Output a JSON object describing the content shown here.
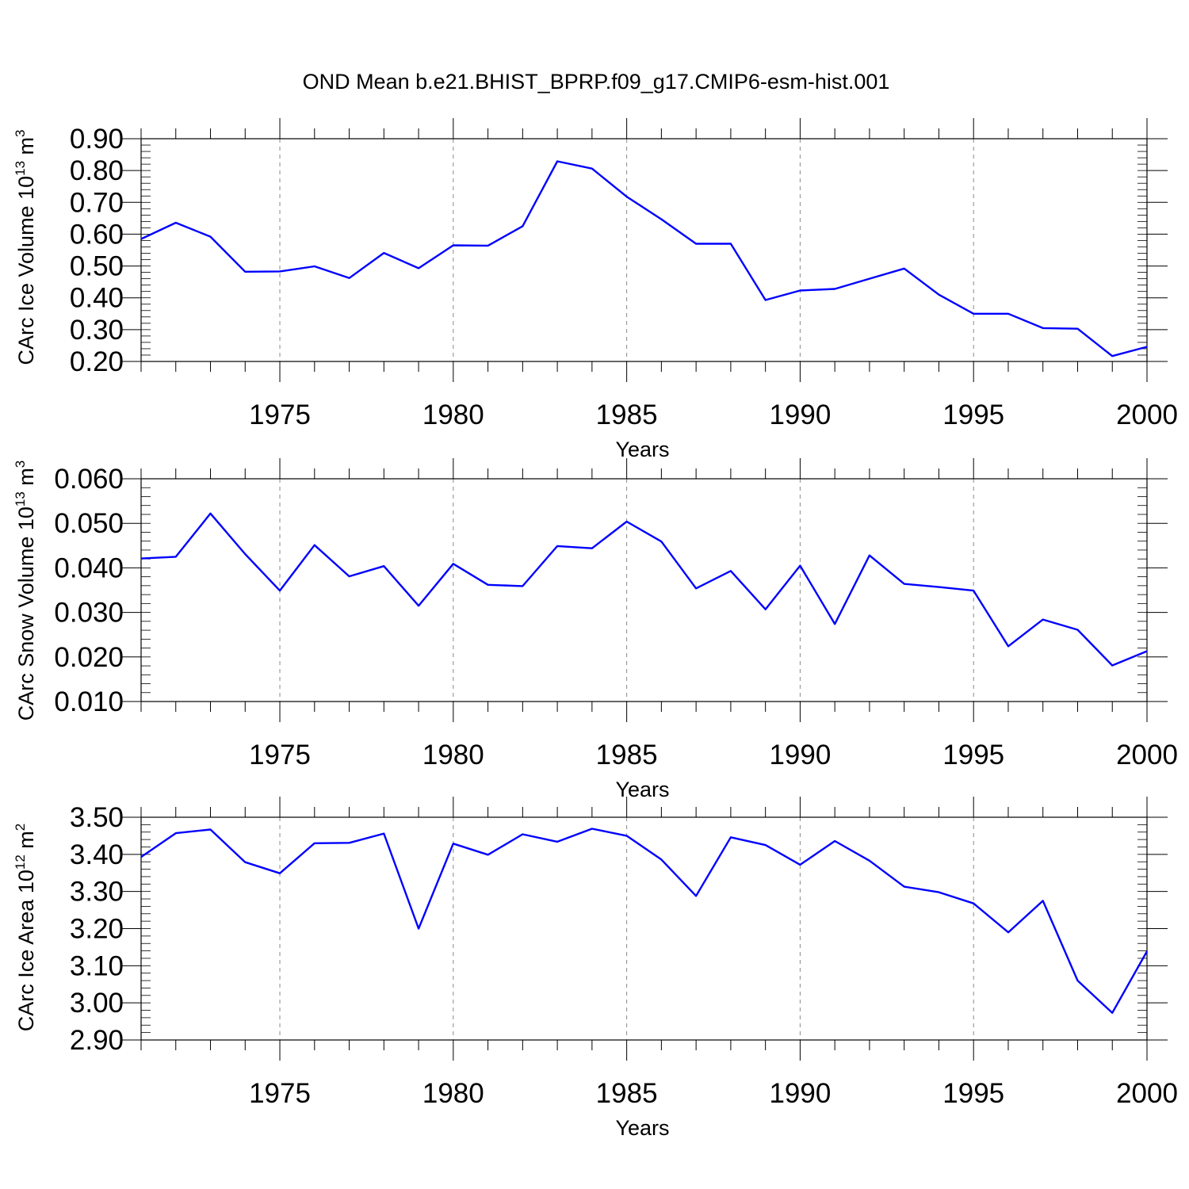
{
  "title": "OND Mean b.e21.BHIST_BPRP.f09_g17.CMIP6-esm-hist.001",
  "chart_data": [
    {
      "type": "line",
      "title": "OND Mean b.e21.BHIST_BPRP.f09_g17.CMIP6-esm-hist.001",
      "ylabel_main": "CArc Ice Volume 10",
      "ylabel_exp": "13",
      "ylabel_unit": "m",
      "ylabel_unit_exp": "3",
      "xlabel": "Years",
      "xlim": [
        1971,
        2000
      ],
      "ylim": [
        0.2,
        0.9
      ],
      "x_ticks": [
        1975,
        1980,
        1985,
        1990,
        1995,
        2000
      ],
      "y_ticks": [
        0.2,
        0.3,
        0.4,
        0.5,
        0.6,
        0.7,
        0.8,
        0.9
      ],
      "y_tick_labels": [
        "0.20",
        "0.30",
        "0.40",
        "0.50",
        "0.60",
        "0.70",
        "0.80",
        "0.90"
      ],
      "minor_step": 0.02,
      "line_color": "#0000ff",
      "x": [
        1971,
        1972,
        1973,
        1974,
        1975,
        1976,
        1977,
        1978,
        1979,
        1980,
        1981,
        1982,
        1983,
        1984,
        1985,
        1986,
        1987,
        1988,
        1989,
        1990,
        1991,
        1992,
        1993,
        1994,
        1995,
        1996,
        1997,
        1998,
        1999,
        2000
      ],
      "y": [
        0.585,
        0.636,
        0.592,
        0.482,
        0.483,
        0.499,
        0.462,
        0.541,
        0.493,
        0.565,
        0.564,
        0.625,
        0.829,
        0.806,
        0.718,
        0.647,
        0.57,
        0.57,
        0.393,
        0.423,
        0.428,
        0.46,
        0.492,
        0.41,
        0.35,
        0.35,
        0.305,
        0.303,
        0.217,
        0.246
      ]
    },
    {
      "type": "line",
      "ylabel_main": "CArc Snow Volume 10",
      "ylabel_exp": "13",
      "ylabel_unit": "m",
      "ylabel_unit_exp": "3",
      "xlabel": "Years",
      "xlim": [
        1971,
        2000
      ],
      "ylim": [
        0.01,
        0.06
      ],
      "x_ticks": [
        1975,
        1980,
        1985,
        1990,
        1995,
        2000
      ],
      "y_ticks": [
        0.01,
        0.02,
        0.03,
        0.04,
        0.05,
        0.06
      ],
      "y_tick_labels": [
        "0.010",
        "0.020",
        "0.030",
        "0.040",
        "0.050",
        "0.060"
      ],
      "minor_step": 0.002,
      "line_color": "#0000ff",
      "x": [
        1971,
        1972,
        1973,
        1974,
        1975,
        1976,
        1977,
        1978,
        1979,
        1980,
        1981,
        1982,
        1983,
        1984,
        1985,
        1986,
        1987,
        1988,
        1989,
        1990,
        1991,
        1992,
        1993,
        1994,
        1995,
        1996,
        1997,
        1998,
        1999,
        2000
      ],
      "y": [
        0.0421,
        0.0425,
        0.0522,
        0.0431,
        0.0349,
        0.0451,
        0.0381,
        0.0404,
        0.0315,
        0.0409,
        0.0362,
        0.0359,
        0.0449,
        0.0444,
        0.0504,
        0.0459,
        0.0354,
        0.0393,
        0.0307,
        0.0405,
        0.0274,
        0.0428,
        0.0364,
        0.0357,
        0.0349,
        0.0224,
        0.0284,
        0.0261,
        0.0181,
        0.0213
      ]
    },
    {
      "type": "line",
      "ylabel_main": "CArc Ice Area 10",
      "ylabel_exp": "12",
      "ylabel_unit": "m",
      "ylabel_unit_exp": "2",
      "xlabel": "Years",
      "xlim": [
        1971,
        2000
      ],
      "ylim": [
        2.9,
        3.5
      ],
      "x_ticks": [
        1975,
        1980,
        1985,
        1990,
        1995,
        2000
      ],
      "y_ticks": [
        2.9,
        3.0,
        3.1,
        3.2,
        3.3,
        3.4,
        3.5
      ],
      "y_tick_labels": [
        "2.90",
        "3.00",
        "3.10",
        "3.20",
        "3.30",
        "3.40",
        "3.50"
      ],
      "minor_step": 0.02,
      "line_color": "#0000ff",
      "x": [
        1971,
        1972,
        1973,
        1974,
        1975,
        1976,
        1977,
        1978,
        1979,
        1980,
        1981,
        1982,
        1983,
        1984,
        1985,
        1986,
        1987,
        1988,
        1989,
        1990,
        1991,
        1992,
        1993,
        1994,
        1995,
        1996,
        1997,
        1998,
        1999,
        2000
      ],
      "y": [
        3.393,
        3.457,
        3.467,
        3.379,
        3.349,
        3.43,
        3.431,
        3.456,
        3.2,
        3.429,
        3.399,
        3.454,
        3.434,
        3.469,
        3.45,
        3.386,
        3.288,
        3.446,
        3.425,
        3.372,
        3.436,
        3.383,
        3.313,
        3.298,
        3.268,
        3.19,
        3.275,
        3.06,
        2.973,
        3.139
      ]
    }
  ]
}
